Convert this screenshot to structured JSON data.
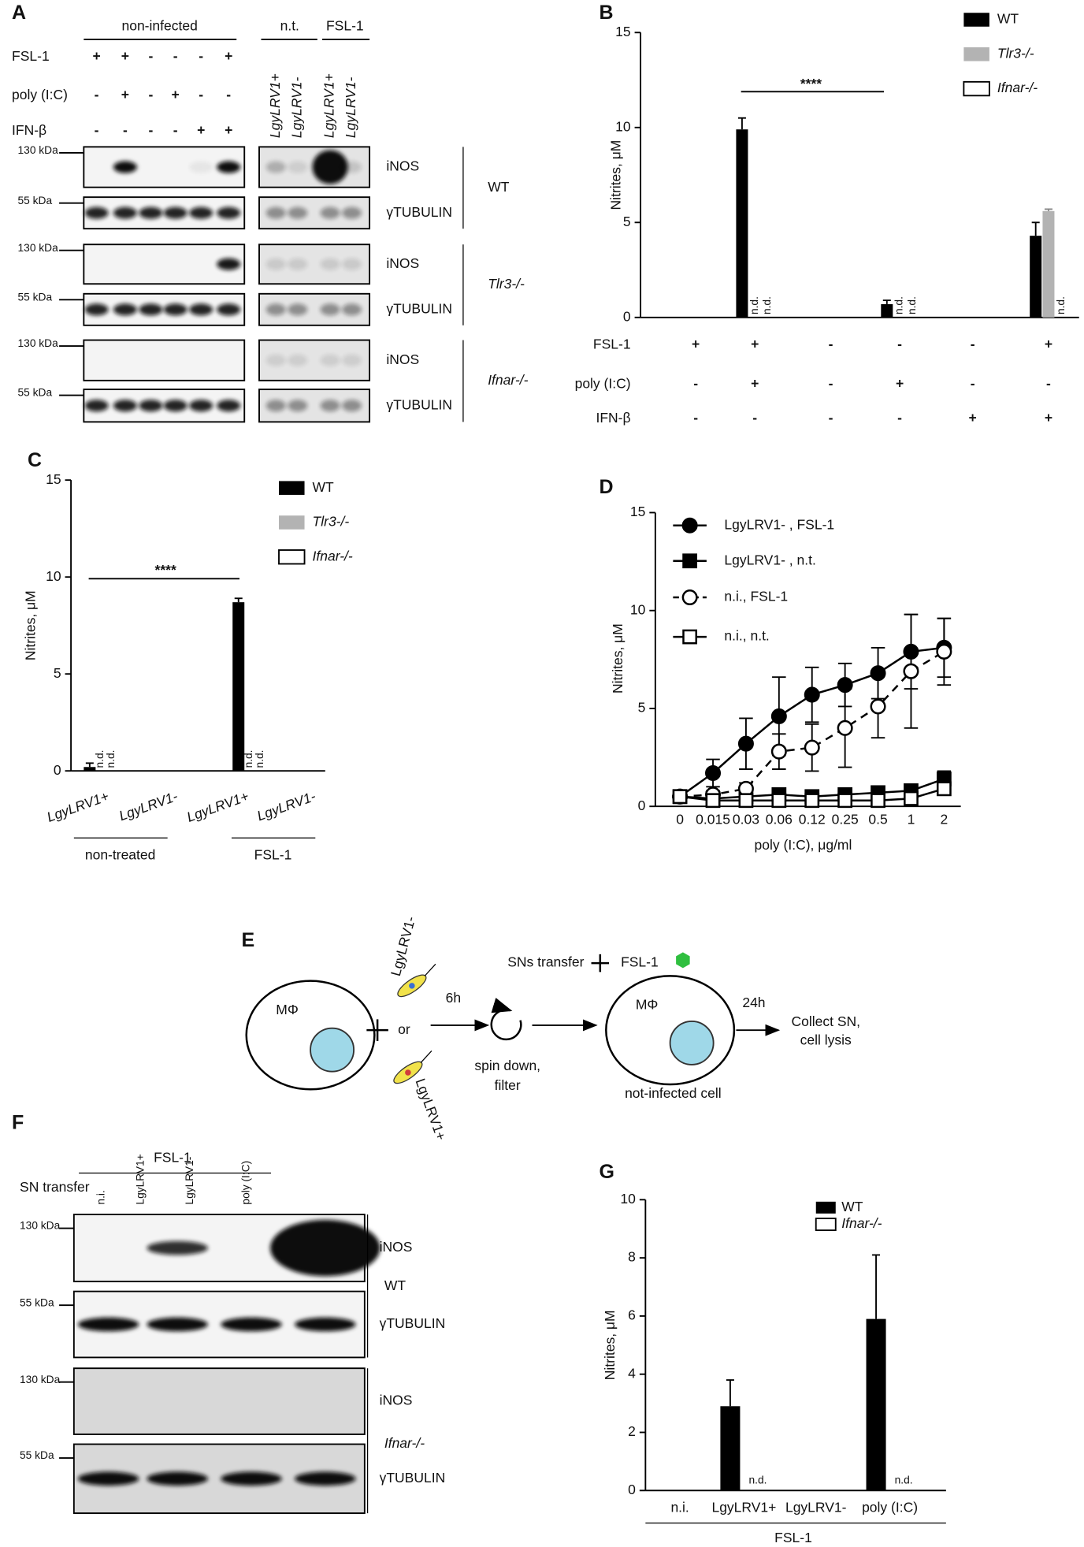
{
  "panel_letters": [
    "A",
    "B",
    "C",
    "D",
    "E",
    "F",
    "G"
  ],
  "blot_a": {
    "group_labels": [
      "non-infected",
      "n.t.",
      "FSL-1"
    ],
    "treatments": [
      {
        "label": "FSL-1",
        "signs": [
          "+",
          "+",
          "-",
          "-",
          "-",
          "+"
        ]
      },
      {
        "label": "poly (I:C)",
        "signs": [
          "-",
          "+",
          "-",
          "+",
          "-",
          "-"
        ]
      },
      {
        "label": "IFN-β",
        "signs": [
          "-",
          "-",
          "-",
          "-",
          "+",
          "+"
        ]
      }
    ],
    "lanes": [
      "LgyLRV1+",
      "LgyLRV1-",
      "LgyLRV1+",
      "LgyLRV1-"
    ],
    "markers": [
      "130 kDa",
      "55 kDa"
    ],
    "proteins": [
      "iNOS",
      "γTUBULIN"
    ],
    "genotypes": [
      "WT",
      "Tlr3-/-",
      "Ifnar-/-"
    ]
  },
  "chart_data": [
    {
      "type": "bar",
      "y_label": "Nitrites, μM",
      "ylim": [
        0,
        15
      ],
      "yticks": [
        0,
        5,
        10,
        15
      ],
      "condition_rows": [
        {
          "label": "FSL-1",
          "signs": [
            "+",
            "+",
            "-",
            "-",
            "-",
            "+"
          ]
        },
        {
          "label": "poly (I:C)",
          "signs": [
            "-",
            "+",
            "-",
            "+",
            "-",
            "-"
          ]
        },
        {
          "label": "IFN-β",
          "signs": [
            "-",
            "-",
            "-",
            "-",
            "+",
            "+"
          ]
        }
      ],
      "significance": "****",
      "series": [
        {
          "name": "WT",
          "color": "#000000",
          "values": [
            null,
            9.9,
            null,
            0.7,
            null,
            4.3
          ],
          "errors": [
            null,
            0.6,
            null,
            0.2,
            null,
            0.7
          ]
        },
        {
          "name": "Tlr3-/-",
          "color": "#b3b3b3",
          "values": [
            null,
            null,
            null,
            null,
            null,
            5.6
          ],
          "errors": [
            null,
            null,
            null,
            null,
            null,
            0.1
          ],
          "value_labels": [
            null,
            "n.d.",
            null,
            "n.d.",
            null,
            null
          ]
        },
        {
          "name": "Ifnar-/-",
          "color": "#ffffff",
          "values": [
            null,
            null,
            null,
            null,
            null,
            null
          ],
          "value_labels": [
            null,
            "n.d.",
            null,
            "n.d.",
            null,
            "n.d."
          ]
        }
      ]
    },
    {
      "type": "bar",
      "y_label": "Nitrites, μM",
      "ylim": [
        0,
        15
      ],
      "yticks": [
        0,
        5,
        10,
        15
      ],
      "categories": [
        "LgyLRV1+",
        "LgyLRV1-",
        "LgyLRV1+",
        "LgyLRV1-"
      ],
      "category_groups": [
        "non-treated",
        "FSL-1"
      ],
      "significance": "****",
      "series": [
        {
          "name": "WT",
          "color": "#000000",
          "values": [
            0.2,
            null,
            8.7,
            null
          ],
          "errors": [
            0.2,
            null,
            0.2,
            null
          ]
        },
        {
          "name": "Tlr3-/-",
          "color": "#b3b3b3",
          "values": [
            null,
            null,
            null,
            null
          ],
          "value_labels": [
            "n.d.",
            null,
            "n.d.",
            null
          ]
        },
        {
          "name": "Ifnar-/-",
          "color": "#ffffff",
          "values": [
            null,
            null,
            null,
            null
          ],
          "value_labels": [
            "n.d.",
            null,
            "n.d.",
            null
          ]
        }
      ]
    },
    {
      "type": "line",
      "y_label": "Nitrites, μM",
      "x_label": "poly (I:C), μg/ml",
      "ylim": [
        0,
        15
      ],
      "yticks": [
        0,
        5,
        10,
        15
      ],
      "categories": [
        "0",
        "0.015",
        "0.03",
        "0.06",
        "0.12",
        "0.25",
        "0.5",
        "1",
        "2"
      ],
      "series": [
        {
          "name": "LgyLRV1- , FSL-1",
          "color": "#000000",
          "marker": "circle",
          "filled": true,
          "dashed": false,
          "values": [
            0.5,
            1.7,
            3.2,
            4.6,
            5.7,
            6.2,
            6.8,
            7.9,
            8.1
          ],
          "errors": [
            0.2,
            0.7,
            1.3,
            2.0,
            1.4,
            1.1,
            1.3,
            1.9,
            1.5
          ]
        },
        {
          "name": "LgyLRV1- , n.t.",
          "color": "#000000",
          "marker": "square",
          "filled": true,
          "dashed": false,
          "values": [
            0.5,
            0.4,
            0.5,
            0.6,
            0.5,
            0.6,
            0.7,
            0.8,
            1.4
          ],
          "errors": [
            0.1,
            0.1,
            0.1,
            0.2,
            0.2,
            0.2,
            0.2,
            0.2,
            0.4
          ]
        },
        {
          "name": "n.i., FSL-1",
          "color": "#000000",
          "marker": "circle",
          "filled": false,
          "dashed": true,
          "values": [
            0.5,
            0.6,
            0.9,
            2.8,
            3.0,
            4.0,
            5.1,
            6.9,
            7.9
          ],
          "errors": [
            0.1,
            0.2,
            0.3,
            0.9,
            1.2,
            2.0,
            1.6,
            2.9,
            1.7
          ]
        },
        {
          "name": "n.i., n.t.",
          "color": "#000000",
          "marker": "square",
          "filled": false,
          "dashed": false,
          "values": [
            0.5,
            0.3,
            0.3,
            0.3,
            0.3,
            0.3,
            0.3,
            0.4,
            0.9
          ],
          "errors": [
            0.1,
            0.1,
            0.1,
            0.1,
            0.1,
            0.1,
            0.1,
            0.1,
            0.2
          ]
        }
      ]
    },
    {
      "type": "bar",
      "y_label": "Nitrites, μM",
      "ylim": [
        0,
        10
      ],
      "yticks": [
        0,
        2,
        4,
        6,
        8,
        10
      ],
      "categories": [
        "n.i.",
        "LgyLRV1+",
        "LgyLRV1-",
        "poly (I:C)"
      ],
      "category_groups": [
        "FSL-1"
      ],
      "series": [
        {
          "name": "WT",
          "color": "#000000",
          "values": [
            null,
            2.9,
            null,
            5.9
          ],
          "errors": [
            null,
            0.9,
            null,
            2.2
          ]
        },
        {
          "name": "Ifnar-/-",
          "color": "#ffffff",
          "values": [
            null,
            null,
            null,
            null
          ],
          "value_labels": [
            null,
            "n.d.",
            null,
            "n.d."
          ]
        }
      ]
    }
  ],
  "diagram_e": {
    "cell_label": "MΦ",
    "parasites": [
      "LgyLRV1-",
      "LgyLRV1+"
    ],
    "or": "or",
    "time_1": "6h",
    "transfer": "SNs transfer",
    "stimulus": "FSL-1",
    "spin": [
      "spin down,",
      "filter"
    ],
    "target_cell": "not-infected cell",
    "time_2": "24h",
    "collect": [
      "Collect SN,",
      "cell lysis"
    ]
  },
  "blot_f": {
    "treatment": "FSL-1",
    "row_label": "SN transfer",
    "lanes": [
      "n.i.",
      "LgyLRV1+",
      "LgyLRV1-",
      "poly (I:C)"
    ],
    "markers": [
      "130 kDa",
      "55 kDa"
    ],
    "proteins": [
      "iNOS",
      "γTUBULIN"
    ],
    "genotypes": [
      "WT",
      "Ifnar-/-"
    ]
  }
}
